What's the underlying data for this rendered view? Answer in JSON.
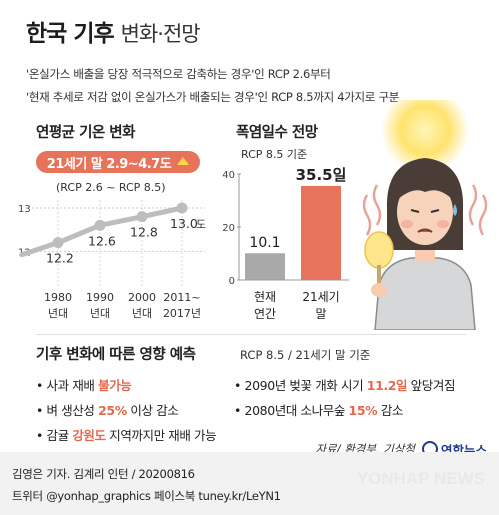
{
  "title": {
    "main": "한국 기후",
    "sub": "변화·전망"
  },
  "subtitle_lines": [
    "'온실가스 배출을 당장 적극적으로 감축하는 경우'인 RCP 2.6부터",
    "'현재 추세로 저감 없이 온실가스가 배출되는 경우'인 RCP 8.5까지 4가지로 구분"
  ],
  "left_panel": {
    "title": "연평균 기온 변화",
    "badge_prefix": "21세기 말 ",
    "badge_value": "2.9~4.7도",
    "badge_note": "(RCP 2.6 ~ RCP 8.5)",
    "unit_label": "도"
  },
  "right_panel": {
    "title": "폭염일수 전망",
    "subtitle": "RCP 8.5 기준",
    "value_suffix": "일"
  },
  "impacts": {
    "title": "기후 변화에 따른 영향 예측",
    "basis": "RCP 8.5 / 21세기 말 기준",
    "items": [
      {
        "pre": "사과 재배 ",
        "hl": "불가능",
        "post": ""
      },
      {
        "pre": "2090년 벚꽃 개화 시기 ",
        "hl": "11.2일",
        "post": " 앞당겨짐"
      },
      {
        "pre": "벼 생산성 ",
        "hl": "25%",
        "post": " 이상 감소"
      },
      {
        "pre": "2080년대 소나무숲 ",
        "hl": "15%",
        "post": " 감소"
      },
      {
        "pre": "감귤 ",
        "hl": "강원도",
        "post": " 지역까지만 재배 가능"
      }
    ]
  },
  "source": "자료/ 환경부, 기상청",
  "brand": "연합뉴스",
  "credits": {
    "line1": "김영은 기자. 김계리 인턴  / 20200816",
    "line2": "트위터 @yonhap_graphics  페이스북 tuney.kr/LeYN1"
  },
  "watermark": "YONHAP NEWS",
  "colors": {
    "accent": "#e7735a",
    "line": "#bdbdbd",
    "bar_present": "#a9a9a9",
    "bar_future": "#e7735a",
    "highlight_text": "#e26a4f",
    "brand_blue": "#1f3b8c"
  },
  "chart_data": [
    {
      "type": "line",
      "title": "연평균 기온 변화",
      "categories": [
        "1980 년대",
        "1990 년대",
        "2000 년대",
        "2011~ 2017년"
      ],
      "x_labels": [
        [
          "1980",
          "년대"
        ],
        [
          "1990",
          "년대"
        ],
        [
          "2000",
          "년대"
        ],
        [
          "2011~",
          "2017년"
        ]
      ],
      "values": [
        12.2,
        12.6,
        12.8,
        13.0
      ],
      "value_labels": [
        "12.2",
        "12.6",
        "12.8",
        "13.0"
      ],
      "ylim": [
        11.5,
        13
      ],
      "yticks": [
        12,
        13
      ],
      "grid": false
    },
    {
      "type": "bar",
      "title": "폭염일수 전망",
      "categories": [
        "현재 연간",
        "21세기 말"
      ],
      "x_labels": [
        [
          "현재",
          "연간"
        ],
        [
          "21세기",
          "말"
        ]
      ],
      "values": [
        10.1,
        35.5
      ],
      "value_labels": [
        "10.1",
        "35.5"
      ],
      "ylim": [
        0,
        40
      ],
      "yticks": [
        0,
        20,
        40
      ],
      "grid": false
    }
  ]
}
